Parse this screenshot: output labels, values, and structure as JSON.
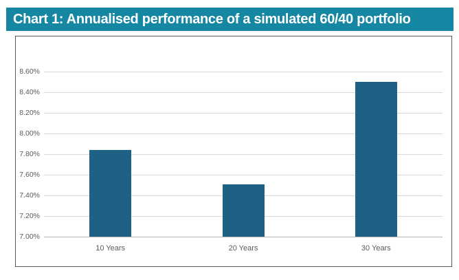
{
  "header": {
    "title": "Chart 1: Annualised performance of a simulated 60/40 portfolio"
  },
  "colors": {
    "header_bg": "#1587a2",
    "header_text": "#ffffff",
    "bar": "#1d6185",
    "gridline": "#d9d9d9",
    "axis_line": "#b3b3b3",
    "box_border": "#58595b",
    "tick_text": "#595959"
  },
  "chart_data": {
    "type": "bar",
    "title": "Chart 1: Annualised performance of a simulated 60/40 portfolio",
    "categories": [
      "10 Years",
      "20 Years",
      "30 Years"
    ],
    "values": [
      7.84,
      7.51,
      8.5
    ],
    "xlabel": "",
    "ylabel": "",
    "ylim": [
      7.0,
      8.6
    ],
    "ytick_step": 0.2,
    "ytick_labels": [
      "8.60%",
      "8.40%",
      "8.20%",
      "8.00%",
      "7.80%",
      "7.60%",
      "7.40%",
      "7.20%",
      "7.00%"
    ],
    "grid": true,
    "legend": false,
    "bar_color": "#1d6185"
  }
}
